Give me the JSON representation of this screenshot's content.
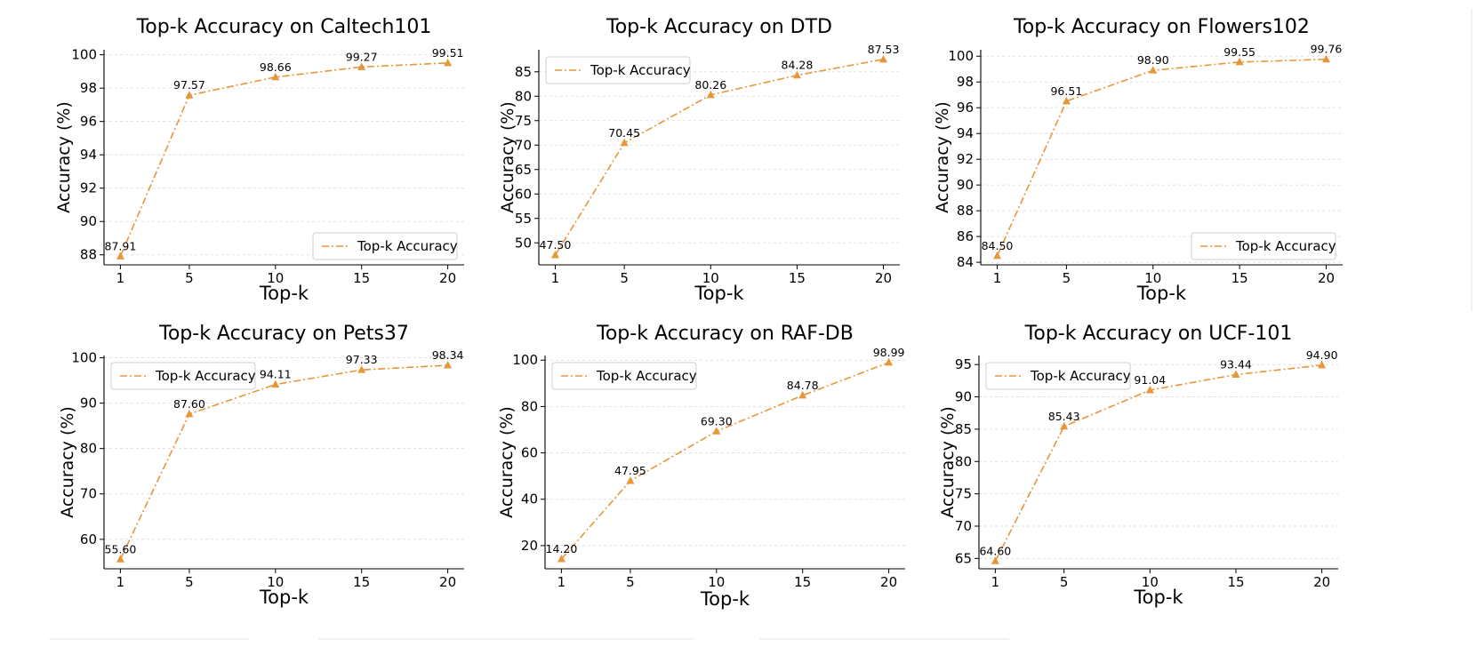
{
  "figure": {
    "chart_data": [
      {
        "type": "line",
        "title": "Top-k Accuracy on Caltech101",
        "xlabel": "Top-k",
        "ylabel": "Accuracy (%)",
        "x": [
          1,
          5,
          10,
          15,
          20
        ],
        "xticks": [
          "1",
          "5",
          "10",
          "15",
          "20"
        ],
        "yticks": [
          "88",
          "90",
          "92",
          "94",
          "96",
          "98",
          "100"
        ],
        "ylim": [
          87.4,
          100.3
        ],
        "series": [
          {
            "name": "Top-k Accuracy",
            "values": [
              87.91,
              97.57,
              98.66,
              99.27,
              99.51
            ],
            "labels": [
              "87.91",
              "97.57",
              "98.66",
              "99.27",
              "99.51"
            ],
            "color": "#E8963A"
          }
        ],
        "legend_position": "bottom-right",
        "grid": "horizontal dashed"
      },
      {
        "type": "line",
        "title": "Top-k Accuracy on DTD",
        "xlabel": "Top-k",
        "ylabel": "Accuracy (%)",
        "x": [
          1,
          5,
          10,
          15,
          20
        ],
        "xticks": [
          "1",
          "5",
          "10",
          "15",
          "20"
        ],
        "yticks": [
          "50",
          "55",
          "60",
          "65",
          "70",
          "75",
          "80",
          "85"
        ],
        "ylim": [
          45.5,
          89.5
        ],
        "series": [
          {
            "name": "Top-k Accuracy",
            "values": [
              47.5,
              70.45,
              80.26,
              84.28,
              87.53
            ],
            "labels": [
              "47.50",
              "70.45",
              "80.26",
              "84.28",
              "87.53"
            ],
            "color": "#E8963A"
          }
        ],
        "legend_position": "top-left",
        "grid": "horizontal dashed"
      },
      {
        "type": "line",
        "title": "Top-k Accuracy on Flowers102",
        "xlabel": "Top-k",
        "ylabel": "Accuracy (%)",
        "x": [
          1,
          5,
          10,
          15,
          20
        ],
        "xticks": [
          "1",
          "5",
          "10",
          "15",
          "20"
        ],
        "yticks": [
          "84",
          "86",
          "88",
          "90",
          "92",
          "94",
          "96",
          "98",
          "100"
        ],
        "ylim": [
          83.8,
          100.5
        ],
        "series": [
          {
            "name": "Top-k Accuracy",
            "values": [
              84.5,
              96.51,
              98.9,
              99.55,
              99.76
            ],
            "labels": [
              "84.50",
              "96.51",
              "98.90",
              "99.55",
              "99.76"
            ],
            "color": "#E8963A"
          }
        ],
        "legend_position": "bottom-right",
        "grid": "horizontal dashed"
      },
      {
        "type": "line",
        "title": "Top-k Accuracy on Pets37",
        "xlabel": "Top-k",
        "ylabel": "Accuracy (%)",
        "x": [
          1,
          5,
          10,
          15,
          20
        ],
        "xticks": [
          "1",
          "5",
          "10",
          "15",
          "20"
        ],
        "yticks": [
          "60",
          "70",
          "80",
          "90",
          "100"
        ],
        "ylim": [
          53.5,
          100.5
        ],
        "series": [
          {
            "name": "Top-k Accuracy",
            "values": [
              55.6,
              87.6,
              94.11,
              97.33,
              98.34
            ],
            "labels": [
              "55.60",
              "87.60",
              "94.11",
              "97.33",
              "98.34"
            ],
            "color": "#E8963A"
          }
        ],
        "legend_position": "top-left",
        "grid": "horizontal dashed"
      },
      {
        "type": "line",
        "title": "Top-k Accuracy on RAF-DB",
        "xlabel": "Top-k",
        "ylabel": "Accuracy (%)",
        "x": [
          1,
          5,
          10,
          15,
          20
        ],
        "xticks": [
          "1",
          "5",
          "10",
          "15",
          "20"
        ],
        "yticks": [
          "20",
          "40",
          "60",
          "80",
          "100"
        ],
        "ylim": [
          10,
          102
        ],
        "series": [
          {
            "name": "Top-k Accuracy",
            "values": [
              14.2,
              47.95,
              69.3,
              84.78,
              98.99
            ],
            "labels": [
              "14.20",
              "47.95",
              "69.30",
              "84.78",
              "98.99"
            ],
            "color": "#E8963A"
          }
        ],
        "legend_position": "top-left",
        "grid": "horizontal dashed"
      },
      {
        "type": "line",
        "title": "Top-k Accuracy on UCF-101",
        "xlabel": "Top-k",
        "ylabel": "Accuracy (%)",
        "x": [
          1,
          5,
          10,
          15,
          20
        ],
        "xticks": [
          "1",
          "5",
          "10",
          "15",
          "20"
        ],
        "yticks": [
          "65",
          "70",
          "75",
          "80",
          "85",
          "90",
          "95"
        ],
        "ylim": [
          63.4,
          96.4
        ],
        "series": [
          {
            "name": "Top-k Accuracy",
            "values": [
              64.6,
              85.43,
              91.04,
              93.44,
              94.9
            ],
            "labels": [
              "64.60",
              "85.43",
              "91.04",
              "93.44",
              "94.90"
            ],
            "color": "#E8963A"
          }
        ],
        "legend_position": "top-left",
        "grid": "horizontal dashed"
      }
    ]
  }
}
